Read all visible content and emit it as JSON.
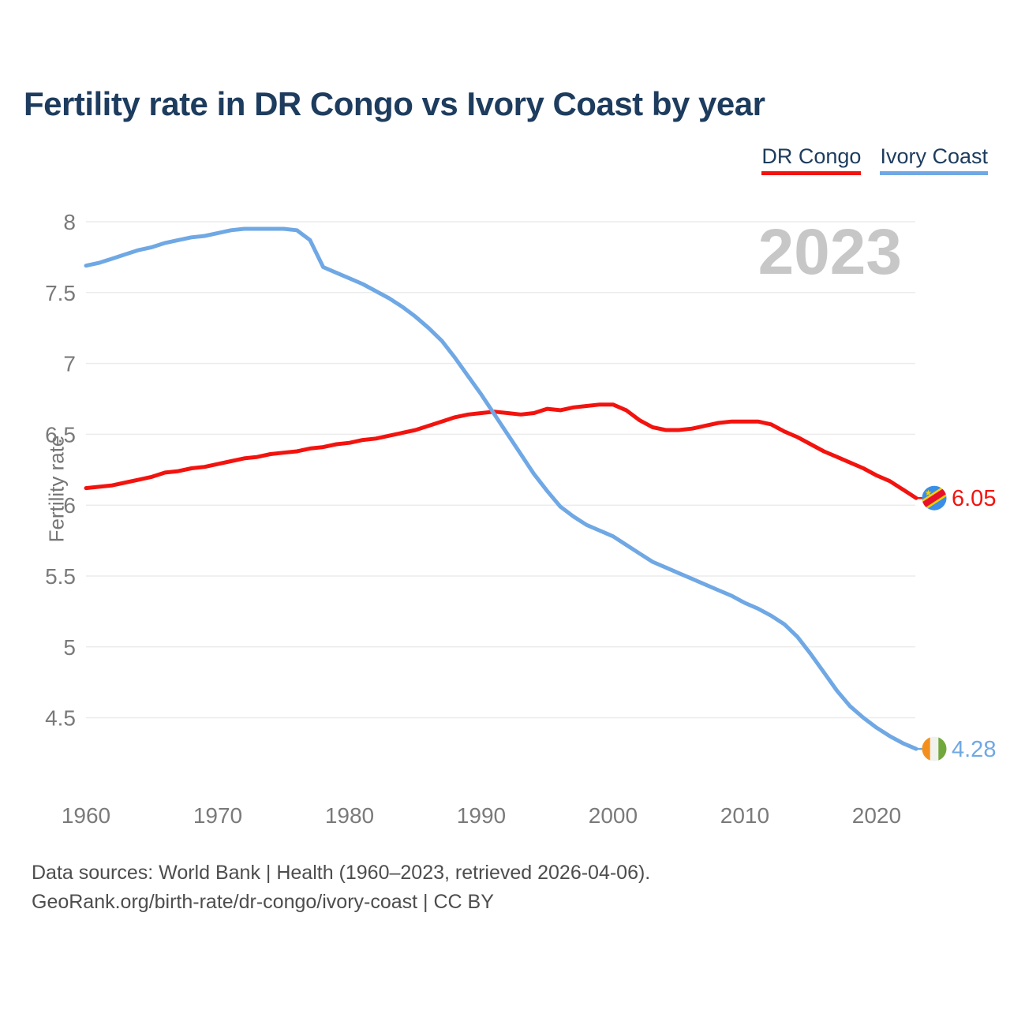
{
  "title": "Fertility rate in DR Congo vs Ivory Coast by year",
  "legend": {
    "dr_congo_label": "DR Congo",
    "ivory_coast_label": "Ivory Coast"
  },
  "watermark": "2023",
  "y_axis_title": "Fertility rate",
  "footer": {
    "line1": "Data sources: World Bank | Health (1960–2023, retrieved 2026-04-06).",
    "line2": "GeoRank.org/birth-rate/dr-congo/ivory-coast | CC BY"
  },
  "colors": {
    "dr_congo": "#f3130e",
    "ivory_coast": "#6fa8e4",
    "title_text": "#1d3c5e",
    "axis_text": "#7a7a7a",
    "gridline": "#ececec",
    "watermark": "#c7c7c7",
    "footer_text": "#4d4d4d"
  },
  "chart_data": {
    "type": "line",
    "title": "Fertility rate in DR Congo vs Ivory Coast by year",
    "xlabel": "",
    "ylabel": "Fertility rate",
    "grid": "horizontal",
    "legend_position": "top-right",
    "watermark": "2023",
    "xlim": [
      1960,
      2023
    ],
    "ylim": [
      4.1,
      8.1
    ],
    "xticks": [
      1960,
      1970,
      1980,
      1990,
      2000,
      2010,
      2020
    ],
    "yticks": [
      8,
      7.5,
      7,
      6.5,
      6,
      5.5,
      5,
      4.5
    ],
    "x": [
      1960,
      1961,
      1962,
      1963,
      1964,
      1965,
      1966,
      1967,
      1968,
      1969,
      1970,
      1971,
      1972,
      1973,
      1974,
      1975,
      1976,
      1977,
      1978,
      1979,
      1980,
      1981,
      1982,
      1983,
      1984,
      1985,
      1986,
      1987,
      1988,
      1989,
      1990,
      1991,
      1992,
      1993,
      1994,
      1995,
      1996,
      1997,
      1998,
      1999,
      2000,
      2001,
      2002,
      2003,
      2004,
      2005,
      2006,
      2007,
      2008,
      2009,
      2010,
      2011,
      2012,
      2013,
      2014,
      2015,
      2016,
      2017,
      2018,
      2019,
      2020,
      2021,
      2022,
      2023
    ],
    "series": [
      {
        "name": "DR Congo",
        "color": "#f3130e",
        "end_label": "6.05",
        "flag": "flag-dr-congo",
        "values": [
          6.12,
          6.13,
          6.14,
          6.16,
          6.18,
          6.2,
          6.23,
          6.24,
          6.26,
          6.27,
          6.29,
          6.31,
          6.33,
          6.34,
          6.36,
          6.37,
          6.38,
          6.4,
          6.41,
          6.43,
          6.44,
          6.46,
          6.47,
          6.49,
          6.51,
          6.53,
          6.56,
          6.59,
          6.62,
          6.64,
          6.65,
          6.66,
          6.65,
          6.64,
          6.65,
          6.68,
          6.67,
          6.69,
          6.7,
          6.71,
          6.71,
          6.67,
          6.6,
          6.55,
          6.53,
          6.53,
          6.54,
          6.56,
          6.58,
          6.59,
          6.59,
          6.59,
          6.57,
          6.52,
          6.48,
          6.43,
          6.38,
          6.34,
          6.3,
          6.26,
          6.21,
          6.17,
          6.11,
          6.05
        ]
      },
      {
        "name": "Ivory Coast",
        "color": "#6fa8e4",
        "end_label": "4.28",
        "flag": "flag-ivory-coast",
        "values": [
          7.69,
          7.71,
          7.74,
          7.77,
          7.8,
          7.82,
          7.85,
          7.87,
          7.89,
          7.9,
          7.92,
          7.94,
          7.95,
          7.95,
          7.95,
          7.95,
          7.94,
          7.87,
          7.68,
          7.64,
          7.6,
          7.56,
          7.51,
          7.46,
          7.4,
          7.33,
          7.25,
          7.16,
          7.04,
          6.91,
          6.78,
          6.64,
          6.5,
          6.36,
          6.22,
          6.1,
          5.99,
          5.92,
          5.86,
          5.82,
          5.78,
          5.72,
          5.66,
          5.6,
          5.56,
          5.52,
          5.48,
          5.44,
          5.4,
          5.36,
          5.31,
          5.27,
          5.22,
          5.16,
          5.07,
          4.95,
          4.82,
          4.69,
          4.58,
          4.5,
          4.43,
          4.37,
          4.32,
          4.28
        ]
      }
    ]
  }
}
